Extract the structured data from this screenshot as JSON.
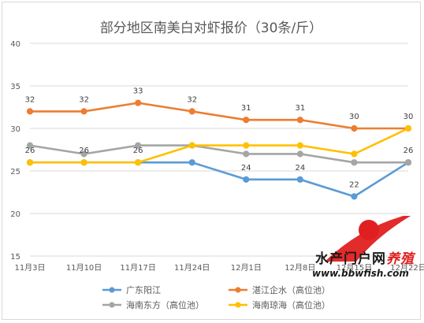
{
  "chart_data": {
    "type": "line",
    "title": "部分地区南美白对虾报价（30条/斤）",
    "categories": [
      "11月3日",
      "11月10日",
      "11月17日",
      "11月24日",
      "12月1日",
      "12月8日",
      "12月15日",
      "12月22日"
    ],
    "ylim": [
      15,
      40
    ],
    "yticks": [
      "15",
      "20",
      "25",
      "30",
      "35",
      "40"
    ],
    "grid": true,
    "legend_position": "bottom",
    "series": [
      {
        "name": "广东阳江",
        "color": "#5b9bd5",
        "values": [
          26,
          26,
          26,
          26,
          24,
          24,
          22,
          26
        ],
        "labels": [
          "26",
          "26",
          "26",
          "",
          "24",
          "24",
          "22",
          "26"
        ]
      },
      {
        "name": "湛江企水（高位池）",
        "color": "#ed7d31",
        "values": [
          32,
          32,
          33,
          32,
          31,
          31,
          30,
          30
        ],
        "labels": [
          "32",
          "32",
          "33",
          "32",
          "31",
          "31",
          "30",
          "30"
        ]
      },
      {
        "name": "海南东方（高位池）",
        "color": "#a5a5a5",
        "values": [
          28,
          27,
          28,
          28,
          27,
          27,
          26,
          26
        ],
        "labels": [
          "",
          "",
          "",
          "",
          "",
          "",
          "",
          ""
        ]
      },
      {
        "name": "海南琼海（高位池）",
        "color": "#ffc000",
        "values": [
          26,
          26,
          26,
          28,
          28,
          28,
          27,
          30
        ],
        "labels": [
          "",
          "",
          "",
          "",
          "",
          "",
          "",
          ""
        ]
      }
    ]
  },
  "watermark": {
    "text_part1": "水产门户网",
    "text_part2": "养殖",
    "url": "www.bbwfish.com"
  }
}
